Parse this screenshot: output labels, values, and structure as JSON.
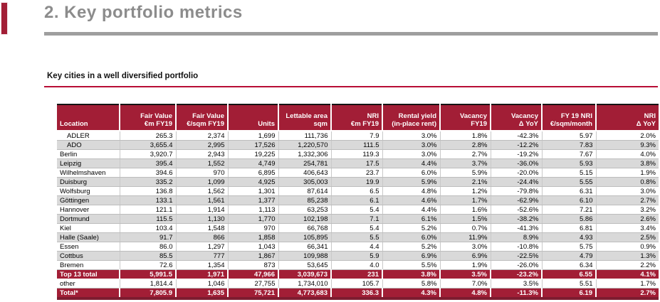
{
  "page": {
    "title": "2. Key portfolio metrics",
    "subtitle": "Key cities in a well diversified portfolio"
  },
  "colors": {
    "accent": "#A21E36",
    "stripe": "#D9D9D9",
    "title_gray": "#8C8C8C",
    "rule_gray": "#9E9E9E",
    "rule_red": "#B80D35",
    "table_bottom": "#7D1C30"
  },
  "table": {
    "columns": [
      {
        "line1": "Location",
        "line2": ""
      },
      {
        "line1": "Fair Value",
        "line2": "€m FY19"
      },
      {
        "line1": "Fair Value",
        "line2": "€/sqm FY19"
      },
      {
        "line1": "",
        "line2": "Units"
      },
      {
        "line1": "Lettable area",
        "line2": "sqm"
      },
      {
        "line1": "NRI",
        "line2": "€m FY19"
      },
      {
        "line1": "Rental yield",
        "line2": "(in-place rent)"
      },
      {
        "line1": "Vacancy",
        "line2": "FY19"
      },
      {
        "line1": "Vacancy",
        "line2": "Δ  YoY"
      },
      {
        "line1": "FY 19 NRI",
        "line2": "€/sqm/month"
      },
      {
        "line1": "NRI",
        "line2": "Δ YoY"
      }
    ],
    "rows": [
      {
        "location": "ADLER",
        "indent": true,
        "variant": "plain",
        "values": [
          "265.3",
          "2,374",
          "1,699",
          "111,736",
          "7.9",
          "3.0%",
          "1.8%",
          "-42.3%",
          "5.97",
          "2.0%"
        ]
      },
      {
        "location": "ADO",
        "indent": true,
        "variant": "shade",
        "values": [
          "3,655.4",
          "2,995",
          "17,526",
          "1,220,570",
          "111.5",
          "3.0%",
          "2.8%",
          "-12.2%",
          "7.83",
          "9.3%"
        ]
      },
      {
        "location": "Berlin",
        "indent": false,
        "variant": "plain",
        "values": [
          "3,920.7",
          "2,943",
          "19,225",
          "1,332,306",
          "119.3",
          "3.0%",
          "2.7%",
          "-19.2%",
          "7.67",
          "4.0%"
        ]
      },
      {
        "location": "Leipzig",
        "indent": false,
        "variant": "shade",
        "values": [
          "395.4",
          "1,552",
          "4,749",
          "254,781",
          "17.5",
          "4.4%",
          "3.7%",
          "-36.0%",
          "5.93",
          "3.8%"
        ]
      },
      {
        "location": "Wilhelmshaven",
        "indent": false,
        "variant": "plain",
        "values": [
          "394.6",
          "970",
          "6,895",
          "406,643",
          "23.7",
          "6.0%",
          "5.9%",
          "-20.0%",
          "5.15",
          "1.9%"
        ]
      },
      {
        "location": "Duisburg",
        "indent": false,
        "variant": "shade",
        "values": [
          "335.2",
          "1,099",
          "4,925",
          "305,003",
          "19.9",
          "5.9%",
          "2.1%",
          "-24.4%",
          "5.55",
          "0.8%"
        ]
      },
      {
        "location": "Wolfsburg",
        "indent": false,
        "variant": "plain",
        "values": [
          "136.8",
          "1,562",
          "1,301",
          "87,614",
          "6.5",
          "4.8%",
          "1.2%",
          "-79.8%",
          "6.31",
          "3.0%"
        ]
      },
      {
        "location": "Göttingen",
        "indent": false,
        "variant": "shade",
        "values": [
          "133.1",
          "1,561",
          "1,377",
          "85,238",
          "6.1",
          "4.6%",
          "1.7%",
          "-62.9%",
          "6.10",
          "2.7%"
        ]
      },
      {
        "location": "Hannover",
        "indent": false,
        "variant": "plain",
        "values": [
          "121.1",
          "1,914",
          "1,113",
          "63,253",
          "5.4",
          "4.4%",
          "1.6%",
          "-52.6%",
          "7.21",
          "3.2%"
        ]
      },
      {
        "location": "Dortmund",
        "indent": false,
        "variant": "shade",
        "values": [
          "115.5",
          "1,130",
          "1,770",
          "102,198",
          "7.1",
          "6.1%",
          "1.5%",
          "-38.2%",
          "5.86",
          "2.6%"
        ]
      },
      {
        "location": "Kiel",
        "indent": false,
        "variant": "plain",
        "values": [
          "103.4",
          "1,548",
          "970",
          "66,768",
          "5.4",
          "5.2%",
          "0.7%",
          "-41.3%",
          "6.81",
          "3.4%"
        ]
      },
      {
        "location": "Halle (Saale)",
        "indent": false,
        "variant": "shade",
        "values": [
          "91.7",
          "866",
          "1,858",
          "105,895",
          "5.5",
          "6.0%",
          "11.9%",
          "8.9%",
          "4.93",
          "2.5%"
        ]
      },
      {
        "location": "Essen",
        "indent": false,
        "variant": "plain",
        "values": [
          "86.0",
          "1,297",
          "1,043",
          "66,341",
          "4.4",
          "5.2%",
          "3.0%",
          "-10.8%",
          "5.75",
          "0.9%"
        ]
      },
      {
        "location": "Cottbus",
        "indent": false,
        "variant": "shade",
        "values": [
          "85.5",
          "777",
          "1,867",
          "109,988",
          "5.9",
          "6.9%",
          "6.9%",
          "-22.5%",
          "4.79",
          "1.3%"
        ]
      },
      {
        "location": "Bremen",
        "indent": false,
        "variant": "plain",
        "values": [
          "72.6",
          "1,354",
          "873",
          "53,645",
          "4.0",
          "5.5%",
          "1.9%",
          "-26.0%",
          "6.34",
          "2.2%"
        ]
      },
      {
        "location": "Top 13 total",
        "indent": false,
        "variant": "total",
        "values": [
          "5,991.5",
          "1,971",
          "47,966",
          "3,039,673",
          "231",
          "3.8%",
          "3.5%",
          "-23.2%",
          "6.55",
          "4.1%"
        ]
      },
      {
        "location": "other",
        "indent": false,
        "variant": "plain",
        "values": [
          "1,814.4",
          "1,046",
          "27,755",
          "1,734,010",
          "105.7",
          "5.8%",
          "7.0%",
          "3.5%",
          "5.51",
          "1.7%"
        ]
      },
      {
        "location": "Total*",
        "indent": false,
        "variant": "total",
        "values": [
          "7,805.9",
          "1,635",
          "75,721",
          "4,773,683",
          "336.3",
          "4.3%",
          "4.8%",
          "-11.3%",
          "6.19",
          "2.7%"
        ]
      }
    ]
  }
}
